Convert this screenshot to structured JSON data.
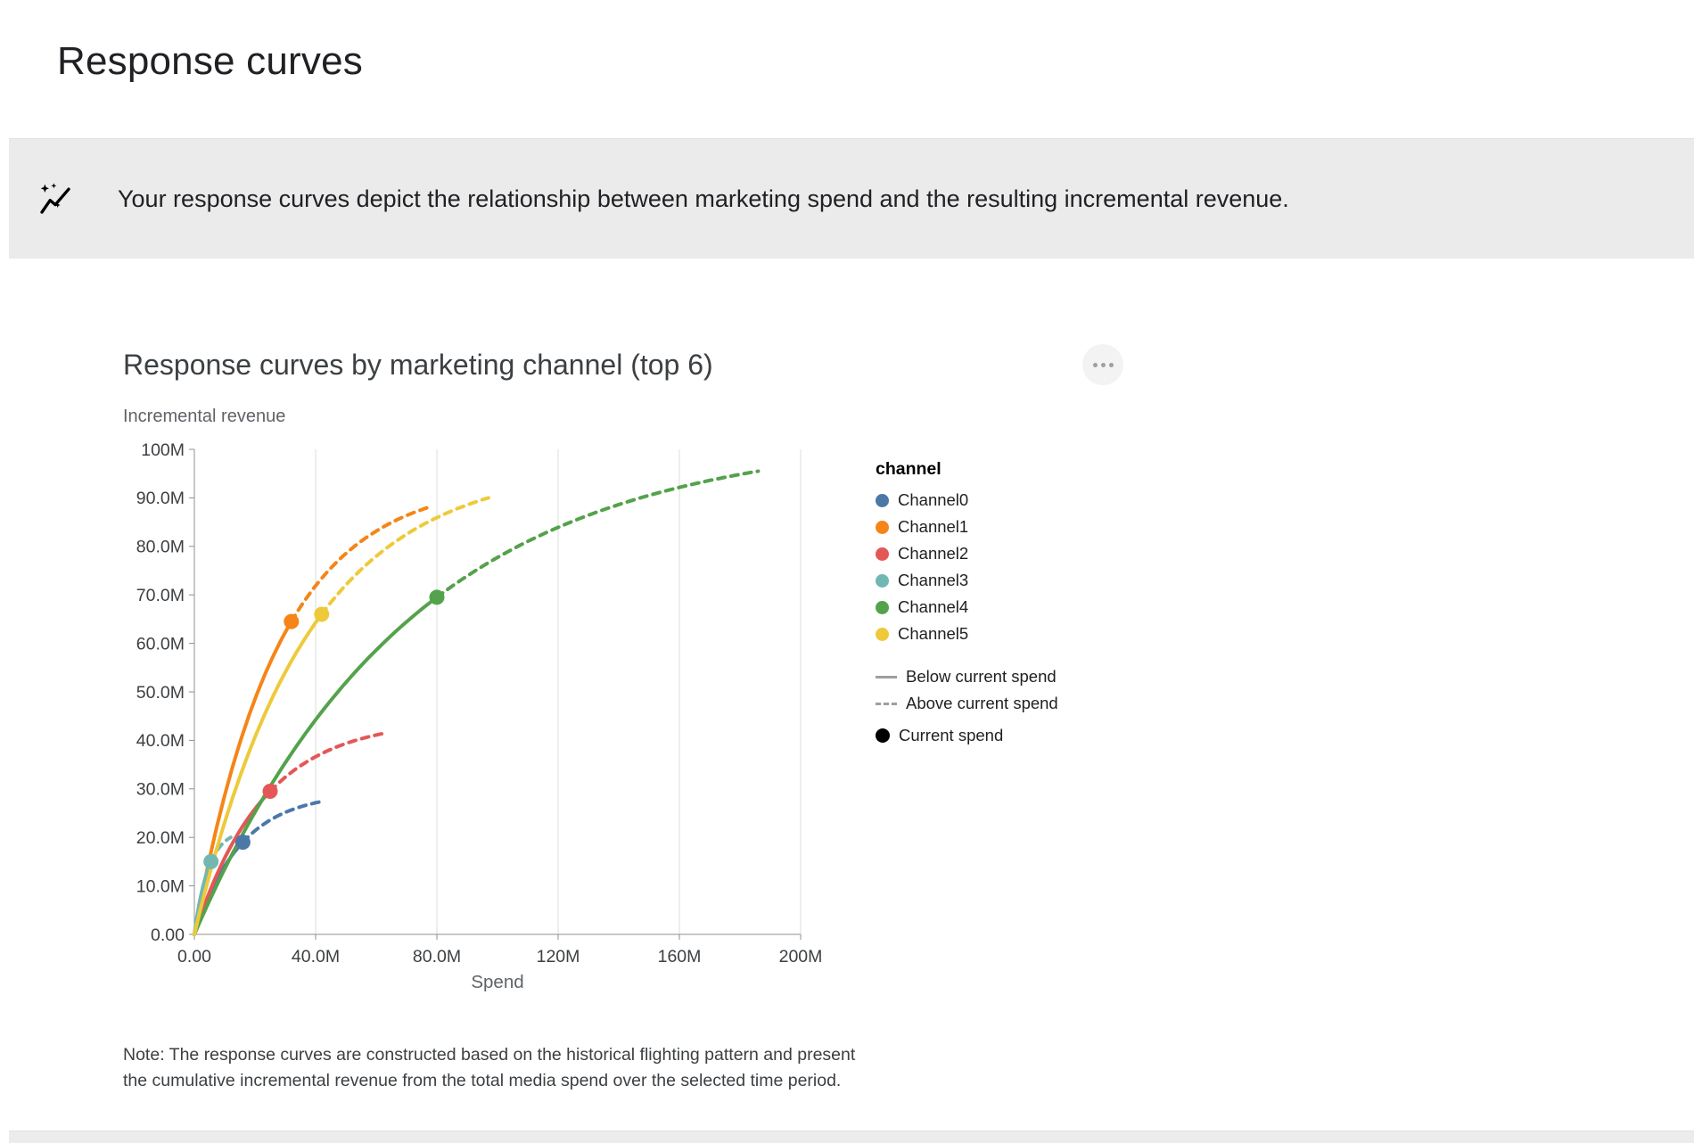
{
  "page": {
    "title": "Response curves",
    "banner": {
      "icon": "auto-graph-icon",
      "text": "Your response curves depict the relationship between marketing spend and the resulting incremental revenue."
    }
  },
  "card": {
    "title": "Response curves by marketing channel (top 6)",
    "menu_icon": "more-options-icon",
    "note": "Note: The response curves are constructed based on the historical flighting pattern and present the cumulative incremental revenue from the total media spend over the selected time period."
  },
  "chart_data": {
    "type": "line",
    "title": "Response curves by marketing channel (top 6)",
    "y_axis_title": "Incremental revenue",
    "xlabel": "Spend",
    "units_note": "spend and revenue values in millions",
    "xlim": [
      0,
      200
    ],
    "ylim": [
      0,
      100
    ],
    "x_tick_values": [
      0,
      40,
      80,
      120,
      160,
      200
    ],
    "x_ticks": [
      "0.00",
      "40.0M",
      "80.0M",
      "120M",
      "160M",
      "200M"
    ],
    "y_tick_values": [
      0,
      10,
      20,
      30,
      40,
      50,
      60,
      70,
      80,
      90,
      100
    ],
    "y_ticks": [
      "0.00",
      "10.0M",
      "20.0M",
      "30.0M",
      "40.0M",
      "50.0M",
      "60.0M",
      "70.0M",
      "80.0M",
      "90.0M",
      "100M"
    ],
    "grid": "vertical-only",
    "legend": {
      "channel_header": "channel",
      "position": "right",
      "line_styles": [
        {
          "style": "solid",
          "label": "Below current spend"
        },
        {
          "style": "dashed",
          "label": "Above current spend"
        },
        {
          "style": "dot",
          "label": "Current spend"
        }
      ]
    },
    "series": [
      {
        "name": "Channel0",
        "color": "#4c78a8",
        "current_spend": {
          "spend": 16,
          "revenue": 19
        },
        "max": {
          "spend": 43,
          "revenue": 27.5
        }
      },
      {
        "name": "Channel1",
        "color": "#f58518",
        "current_spend": {
          "spend": 32,
          "revenue": 64.5
        },
        "max": {
          "spend": 77,
          "revenue": 88
        }
      },
      {
        "name": "Channel2",
        "color": "#e45756",
        "current_spend": {
          "spend": 25,
          "revenue": 29.5
        },
        "max": {
          "spend": 63,
          "revenue": 41.5
        }
      },
      {
        "name": "Channel3",
        "color": "#72b7b2",
        "current_spend": {
          "spend": 5.5,
          "revenue": 15
        },
        "max": {
          "spend": 12,
          "revenue": 20
        }
      },
      {
        "name": "Channel4",
        "color": "#54a24b",
        "current_spend": {
          "spend": 80,
          "revenue": 69.5
        },
        "max": {
          "spend": 186,
          "revenue": 95.5
        }
      },
      {
        "name": "Channel5",
        "color": "#eeca3b",
        "current_spend": {
          "spend": 42,
          "revenue": 66
        },
        "max": {
          "spend": 97,
          "revenue": 90
        }
      }
    ]
  }
}
